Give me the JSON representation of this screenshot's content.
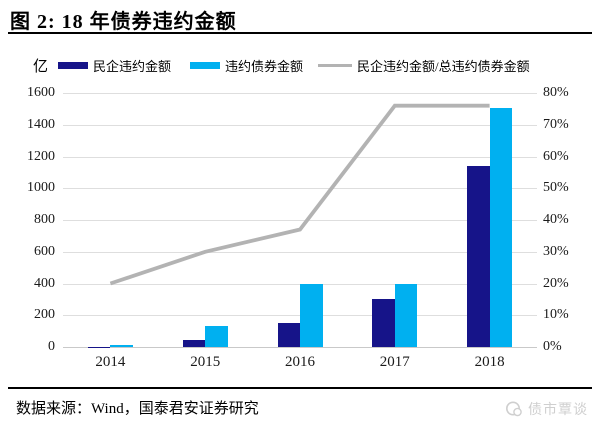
{
  "figure": {
    "title": "图 2: 18 年债券违约金额",
    "unit_label": "亿",
    "source": "数据来源：Wind，国泰君安证券研究",
    "watermark": "债市覃谈"
  },
  "legend": {
    "items": [
      {
        "label": "民企违约金额",
        "color": "#161489",
        "type": "bar"
      },
      {
        "label": "违约债券金额",
        "color": "#00B0F0",
        "type": "bar"
      },
      {
        "label": "民企违约金额/总违约债券金额",
        "color": "#B3B3B3",
        "type": "line"
      }
    ]
  },
  "chart_data": {
    "type": "bar",
    "subtype": "grouped-bars-with-secondary-axis-line",
    "title": "图 2: 18 年债券违约金额",
    "categories": [
      "2014",
      "2015",
      "2016",
      "2017",
      "2018"
    ],
    "series": [
      {
        "name": "民企违约金额",
        "type": "bar",
        "axis": "left",
        "color": "#161489",
        "values": [
          3,
          45,
          150,
          300,
          1140
        ]
      },
      {
        "name": "违约债券金额",
        "type": "bar",
        "axis": "left",
        "color": "#00B0F0",
        "values": [
          13,
          130,
          400,
          400,
          1505
        ]
      },
      {
        "name": "民企违约金额/总违约债券金额",
        "type": "line",
        "axis": "right",
        "color": "#B3B3B3",
        "values": [
          20,
          30,
          37,
          76,
          76
        ]
      }
    ],
    "left_axis": {
      "label": "亿",
      "min": 0,
      "max": 1600,
      "step": 200,
      "ticks": [
        "0",
        "200",
        "400",
        "600",
        "800",
        "1000",
        "1200",
        "1400",
        "1600"
      ]
    },
    "right_axis": {
      "unit": "%",
      "min": 0,
      "max": 80,
      "step": 10,
      "ticks": [
        "0%",
        "10%",
        "20%",
        "30%",
        "40%",
        "50%",
        "60%",
        "70%",
        "80%"
      ]
    },
    "grid": true,
    "legend_position": "top"
  }
}
